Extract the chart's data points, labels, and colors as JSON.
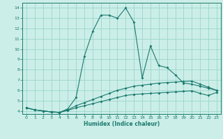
{
  "xlabel": "Humidex (Indice chaleur)",
  "bg_color": "#cceee8",
  "grid_color": "#99d5cc",
  "line_color": "#1a7a6e",
  "xlim": [
    -0.5,
    23.5
  ],
  "ylim": [
    3.7,
    14.5
  ],
  "xticks": [
    0,
    1,
    2,
    3,
    4,
    5,
    6,
    7,
    8,
    9,
    10,
    11,
    12,
    13,
    14,
    15,
    16,
    17,
    18,
    19,
    20,
    21,
    22,
    23
  ],
  "yticks": [
    4,
    5,
    6,
    7,
    8,
    9,
    10,
    11,
    12,
    13,
    14
  ],
  "line1_x": [
    0,
    1,
    2,
    3,
    4,
    5,
    6,
    7,
    8,
    9,
    10,
    11,
    12,
    13,
    14,
    15,
    16,
    17,
    18,
    19,
    20,
    21,
    22,
    23
  ],
  "line1_y": [
    4.3,
    4.1,
    4.0,
    3.9,
    3.85,
    4.2,
    5.3,
    9.3,
    11.7,
    13.3,
    13.3,
    13.0,
    14.0,
    12.6,
    7.2,
    10.3,
    8.4,
    8.2,
    7.5,
    6.7,
    6.6,
    6.4,
    6.2,
    6.0
  ],
  "line2_x": [
    0,
    1,
    2,
    3,
    4,
    5,
    6,
    7,
    8,
    9,
    10,
    11,
    12,
    13,
    14,
    15,
    16,
    17,
    18,
    19,
    20,
    21,
    22,
    23
  ],
  "line2_y": [
    4.3,
    4.1,
    4.0,
    3.9,
    3.85,
    4.1,
    4.5,
    4.8,
    5.1,
    5.4,
    5.7,
    6.0,
    6.2,
    6.4,
    6.5,
    6.6,
    6.7,
    6.75,
    6.8,
    6.85,
    6.9,
    6.6,
    6.3,
    6.0
  ],
  "line3_x": [
    0,
    1,
    2,
    3,
    4,
    5,
    6,
    7,
    8,
    9,
    10,
    11,
    12,
    13,
    14,
    15,
    16,
    17,
    18,
    19,
    20,
    21,
    22,
    23
  ],
  "line3_y": [
    4.3,
    4.1,
    4.0,
    3.9,
    3.85,
    4.05,
    4.3,
    4.5,
    4.7,
    4.9,
    5.1,
    5.3,
    5.5,
    5.6,
    5.65,
    5.7,
    5.75,
    5.8,
    5.85,
    5.9,
    5.95,
    5.7,
    5.5,
    5.8
  ]
}
